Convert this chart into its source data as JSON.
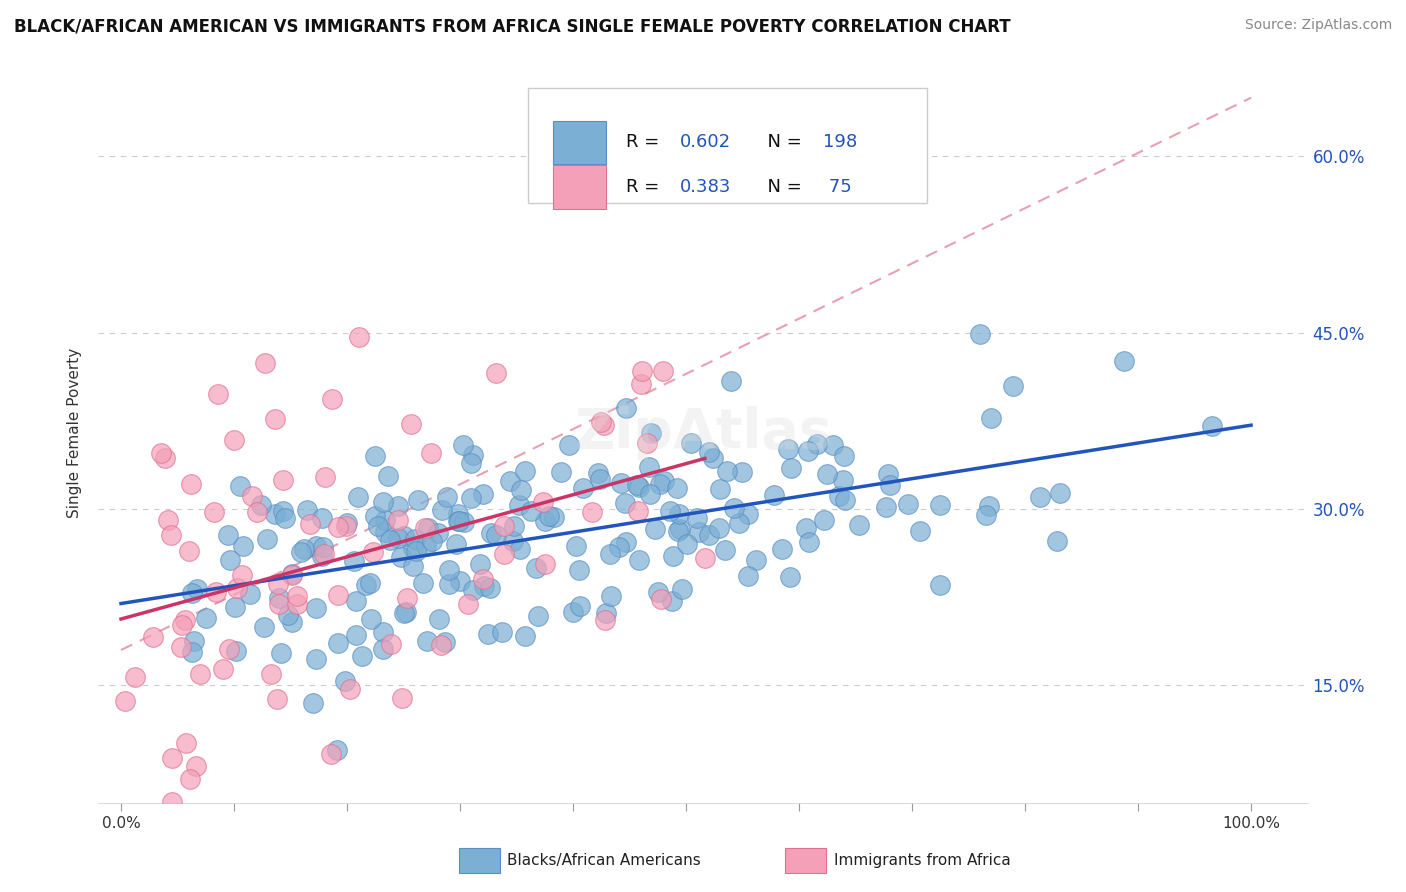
{
  "title": "BLACK/AFRICAN AMERICAN VS IMMIGRANTS FROM AFRICA SINGLE FEMALE POVERTY CORRELATION CHART",
  "source": "Source: ZipAtlas.com",
  "ylabel": "Single Female Poverty",
  "watermark": "ZipAtlas",
  "y_tick_labels": [
    "15.0%",
    "30.0%",
    "45.0%",
    "60.0%"
  ],
  "y_tick_values": [
    0.15,
    0.3,
    0.45,
    0.6
  ],
  "ylim": [
    0.05,
    0.68
  ],
  "xlim": [
    -0.02,
    1.05
  ],
  "blue_R": 0.602,
  "blue_N": 198,
  "pink_R": 0.383,
  "pink_N": 75,
  "blue_dot_color": "#7BAFD4",
  "blue_edge_color": "#5B8FC4",
  "pink_dot_color": "#F4A0B8",
  "pink_edge_color": "#E07090",
  "ref_line_color": "#E8A0B0",
  "blue_trend_color": "#2255BB",
  "pink_trend_color": "#CC3366",
  "legend_label_blue": "Blacks/African Americans",
  "legend_label_pink": "Immigrants from Africa",
  "legend_text_color": "#2255BB",
  "blue_seed": 42,
  "pink_seed": 123
}
